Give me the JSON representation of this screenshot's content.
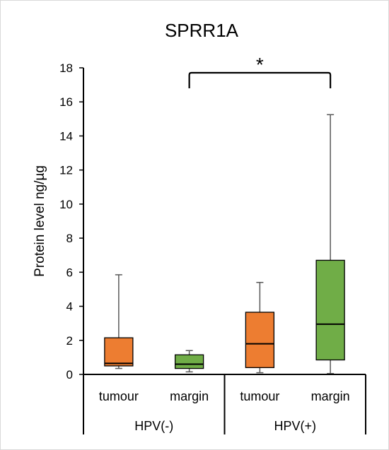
{
  "chart_data": {
    "type": "box",
    "title": "SPRR1A",
    "ylabel": "Protein level ng/µg",
    "xlabel": "",
    "ylim": [
      0,
      18
    ],
    "yticks": [
      0,
      2,
      4,
      6,
      8,
      10,
      12,
      14,
      16,
      18
    ],
    "groups": [
      {
        "label": "HPV(-)",
        "categories": [
          "tumour",
          "margin"
        ]
      },
      {
        "label": "HPV(+)",
        "categories": [
          "tumour",
          "margin"
        ]
      }
    ],
    "boxes": [
      {
        "group": "HPV(-)",
        "category": "tumour",
        "color": "#ED7D31",
        "min": 0.35,
        "q1": 0.5,
        "median": 0.65,
        "q3": 2.15,
        "max": 5.85
      },
      {
        "group": "HPV(-)",
        "category": "margin",
        "color": "#70AD47",
        "min": 0.15,
        "q1": 0.35,
        "median": 0.6,
        "q3": 1.15,
        "max": 1.4
      },
      {
        "group": "HPV(+)",
        "category": "tumour",
        "color": "#ED7D31",
        "min": 0.1,
        "q1": 0.4,
        "median": 1.8,
        "q3": 3.65,
        "max": 5.4
      },
      {
        "group": "HPV(+)",
        "category": "margin",
        "color": "#70AD47",
        "min": 0.05,
        "q1": 0.85,
        "median": 2.95,
        "q3": 6.7,
        "max": 15.25
      }
    ],
    "significance": {
      "from_box": 1,
      "to_box": 3,
      "label": "*"
    },
    "grid": false,
    "legend": "none"
  }
}
